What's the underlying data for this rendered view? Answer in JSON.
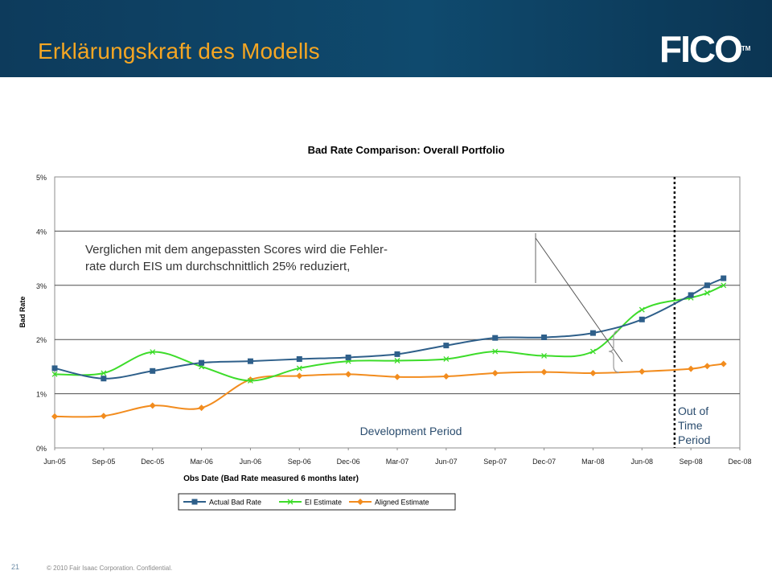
{
  "slide": {
    "title": "Erklärungskraft des Modells",
    "logo": "FICO",
    "logo_tm": "TM",
    "page_number": "21",
    "copyright": "© 2010 Fair Isaac Corporation. Confidential."
  },
  "colors": {
    "header_bg": "#0f4a6e",
    "title": "#f5a623",
    "actual": "#2e5f8a",
    "ei": "#3ddc2a",
    "aligned": "#f28c1e"
  },
  "chart_data": {
    "type": "line",
    "title": "Bad Rate Comparison: Overall Portfolio",
    "xlabel": "Obs Date (Bad Rate measured 6 months later)",
    "ylabel": "Bad Rate",
    "ylim": [
      0,
      5
    ],
    "yticks": [
      "0%",
      "1%",
      "2%",
      "3%",
      "4%",
      "5%"
    ],
    "xticks": [
      "Jun-05",
      "Sep-05",
      "Dec-05",
      "Mar-06",
      "Jun-06",
      "Sep-06",
      "Dec-06",
      "Mar-07",
      "Jun-07",
      "Sep-07",
      "Dec-07",
      "Mar-08",
      "Jun-08",
      "Sep-08",
      "Dec-08"
    ],
    "grid": true,
    "legend_position": "bottom",
    "series": [
      {
        "name": "Actual Bad Rate",
        "marker": "square",
        "points": [
          [
            "Jun-05",
            1.47
          ],
          [
            "Sep-05",
            1.28
          ],
          [
            "Dec-05",
            1.42
          ],
          [
            "Mar-06",
            1.57
          ],
          [
            "Jun-06",
            1.6
          ],
          [
            "Sep-06",
            1.64
          ],
          [
            "Dec-06",
            1.67
          ],
          [
            "Mar-07",
            1.73
          ],
          [
            "Jun-07",
            1.89
          ],
          [
            "Sep-07",
            2.03
          ],
          [
            "Dec-07",
            2.04
          ],
          [
            "Mar-08",
            2.12
          ],
          [
            "Jun-08",
            2.37
          ],
          [
            "Sep-08",
            2.82
          ],
          [
            "Oct-08",
            3.0
          ],
          [
            "Nov-08",
            3.13
          ]
        ]
      },
      {
        "name": "EI Estimate",
        "marker": "x",
        "points": [
          [
            "Jun-05",
            1.36
          ],
          [
            "Sep-05",
            1.38
          ],
          [
            "Dec-05",
            1.77
          ],
          [
            "Mar-06",
            1.5
          ],
          [
            "Jun-06",
            1.24
          ],
          [
            "Sep-06",
            1.47
          ],
          [
            "Dec-06",
            1.6
          ],
          [
            "Mar-07",
            1.61
          ],
          [
            "Jun-07",
            1.64
          ],
          [
            "Sep-07",
            1.78
          ],
          [
            "Dec-07",
            1.7
          ],
          [
            "Mar-08",
            1.78
          ],
          [
            "Jun-08",
            2.55
          ],
          [
            "Sep-08",
            2.77
          ],
          [
            "Oct-08",
            2.86
          ],
          [
            "Nov-08",
            3.0
          ]
        ]
      },
      {
        "name": "Aligned Estimate",
        "marker": "diamond",
        "points": [
          [
            "Jun-05",
            0.58
          ],
          [
            "Sep-05",
            0.59
          ],
          [
            "Dec-05",
            0.78
          ],
          [
            "Mar-06",
            0.74
          ],
          [
            "Jun-06",
            1.26
          ],
          [
            "Sep-06",
            1.33
          ],
          [
            "Dec-06",
            1.36
          ],
          [
            "Mar-07",
            1.31
          ],
          [
            "Jun-07",
            1.32
          ],
          [
            "Sep-07",
            1.38
          ],
          [
            "Dec-07",
            1.4
          ],
          [
            "Mar-08",
            1.38
          ],
          [
            "Jun-08",
            1.41
          ],
          [
            "Sep-08",
            1.46
          ],
          [
            "Oct-08",
            1.51
          ],
          [
            "Nov-08",
            1.55
          ]
        ]
      }
    ],
    "annotations": {
      "callout_line1": "Verglichen mit dem angepassten Scores wird die Fehler-",
      "callout_line2": "rate durch EIS um durchschnittlich 25% reduziert,",
      "development_period": "Development Period",
      "oot_line1": "Out of",
      "oot_line2": "Time",
      "oot_line3": "Period",
      "oot_divider_at": "Aug-08"
    }
  }
}
